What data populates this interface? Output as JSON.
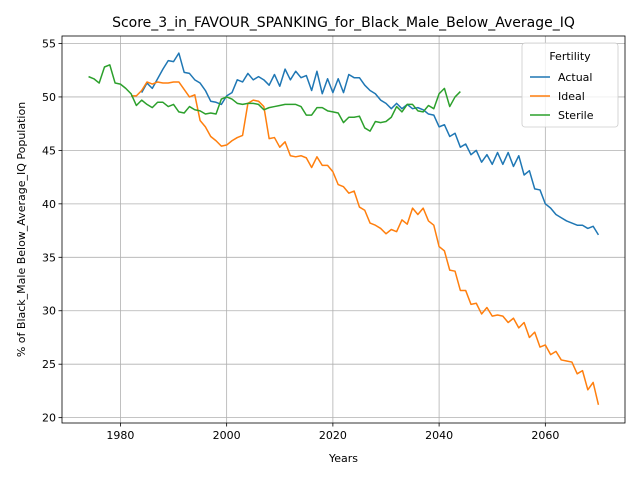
{
  "chart_data": {
    "type": "line",
    "title": "Score_3_in_FAVOUR_SPANKING_for_Black_Male_Below_Average_IQ",
    "xlabel": "Years",
    "ylabel": "% of Black_Male Below_Average_IQ Population",
    "xlim": [
      1969,
      2075
    ],
    "ylim": [
      19.5,
      55.7
    ],
    "xticks": [
      1980,
      2000,
      2020,
      2040,
      2060
    ],
    "yticks": [
      20,
      25,
      30,
      35,
      40,
      45,
      50,
      55
    ],
    "grid": true,
    "legend": {
      "title": "Fertility",
      "placement": "top-right"
    },
    "series": [
      {
        "name": "Actual",
        "color": "#1f77b4",
        "x": [
          1984,
          1985,
          1986,
          1987,
          1988,
          1989,
          1990,
          1991,
          1992,
          1993,
          1994,
          1995,
          1996,
          1997,
          1998,
          1999,
          2000,
          2001,
          2002,
          2003,
          2004,
          2005,
          2006,
          2007,
          2008,
          2009,
          2010,
          2011,
          2012,
          2013,
          2014,
          2015,
          2016,
          2017,
          2018,
          2019,
          2020,
          2021,
          2022,
          2023,
          2024,
          2025,
          2026,
          2027,
          2028,
          2029,
          2030,
          2031,
          2032,
          2033,
          2034,
          2035,
          2036,
          2037,
          2038,
          2039,
          2040,
          2041,
          2042,
          2043,
          2044,
          2045,
          2046,
          2047,
          2048,
          2049,
          2050,
          2051,
          2052,
          2053,
          2054,
          2055,
          2056,
          2057,
          2058,
          2059,
          2060,
          2061,
          2062,
          2063,
          2064,
          2065,
          2066,
          2067,
          2068,
          2069,
          2070
        ],
        "y": [
          50.4,
          51.3,
          50.8,
          51.7,
          52.6,
          53.4,
          53.3,
          54.1,
          52.3,
          52.2,
          51.6,
          51.3,
          50.6,
          49.6,
          49.5,
          49.3,
          50.1,
          50.4,
          51.6,
          51.4,
          52.2,
          51.6,
          51.9,
          51.6,
          51.1,
          52.1,
          51.0,
          52.6,
          51.6,
          52.4,
          51.8,
          52.0,
          50.6,
          52.4,
          50.3,
          51.7,
          50.4,
          51.7,
          50.4,
          52.1,
          51.8,
          51.8,
          51.1,
          50.6,
          50.3,
          49.7,
          49.4,
          48.9,
          49.4,
          48.9,
          49.3,
          48.9,
          49.0,
          48.8,
          48.4,
          48.3,
          47.2,
          47.4,
          46.3,
          46.6,
          45.3,
          45.6,
          44.6,
          45.0,
          43.9,
          44.6,
          43.7,
          44.8,
          43.7,
          44.8,
          43.5,
          44.5,
          42.7,
          43.1,
          41.4,
          41.3,
          40.0,
          39.6,
          39.0,
          38.7,
          38.4,
          38.2,
          38.0,
          38.0,
          37.7,
          37.9,
          37.1
        ]
      },
      {
        "name": "Ideal",
        "color": "#ff7f0e",
        "x": [
          1982,
          1983,
          1984,
          1985,
          1986,
          1987,
          1988,
          1989,
          1990,
          1991,
          1992,
          1993,
          1994,
          1995,
          1996,
          1997,
          1998,
          1999,
          2000,
          2001,
          2002,
          2003,
          2004,
          2005,
          2006,
          2007,
          2008,
          2009,
          2010,
          2011,
          2012,
          2013,
          2014,
          2015,
          2016,
          2017,
          2018,
          2019,
          2020,
          2021,
          2022,
          2023,
          2024,
          2025,
          2026,
          2027,
          2028,
          2029,
          2030,
          2031,
          2032,
          2033,
          2034,
          2035,
          2036,
          2037,
          2038,
          2039,
          2040,
          2041,
          2042,
          2043,
          2044,
          2045,
          2046,
          2047,
          2048,
          2049,
          2050,
          2051,
          2052,
          2053,
          2054,
          2055,
          2056,
          2057,
          2058,
          2059,
          2060,
          2061,
          2062,
          2063,
          2064,
          2065,
          2066,
          2067,
          2068,
          2069,
          2070
        ],
        "y": [
          50.1,
          50.1,
          50.6,
          51.4,
          51.2,
          51.4,
          51.3,
          51.3,
          51.4,
          51.4,
          50.7,
          50.0,
          50.2,
          47.8,
          47.2,
          46.3,
          45.9,
          45.4,
          45.5,
          45.9,
          46.2,
          46.4,
          49.4,
          49.7,
          49.6,
          49.1,
          46.1,
          46.2,
          45.3,
          45.8,
          44.5,
          44.4,
          44.5,
          44.3,
          43.4,
          44.4,
          43.6,
          43.6,
          43.0,
          41.8,
          41.6,
          41.0,
          41.2,
          39.7,
          39.4,
          38.2,
          38.0,
          37.7,
          37.2,
          37.6,
          37.4,
          38.5,
          38.1,
          39.6,
          39.0,
          39.6,
          38.4,
          38.0,
          36.0,
          35.6,
          33.8,
          33.7,
          31.9,
          31.9,
          30.6,
          30.7,
          29.7,
          30.3,
          29.5,
          29.6,
          29.5,
          28.9,
          29.3,
          28.4,
          28.9,
          27.5,
          28.0,
          26.6,
          26.8,
          25.9,
          26.2,
          25.4,
          25.3,
          25.2,
          24.1,
          24.4,
          22.6,
          23.3,
          21.2
        ]
      },
      {
        "name": "Sterile",
        "color": "#2ca02c",
        "x": [
          1974,
          1975,
          1976,
          1977,
          1978,
          1979,
          1980,
          1981,
          1982,
          1983,
          1984,
          1985,
          1986,
          1987,
          1988,
          1989,
          1990,
          1991,
          1992,
          1993,
          1994,
          1995,
          1996,
          1997,
          1998,
          1999,
          2000,
          2001,
          2002,
          2003,
          2004,
          2005,
          2006,
          2007,
          2008,
          2009,
          2010,
          2011,
          2012,
          2013,
          2014,
          2015,
          2016,
          2017,
          2018,
          2019,
          2020,
          2021,
          2022,
          2023,
          2024,
          2025,
          2026,
          2027,
          2028,
          2029,
          2030,
          2031,
          2032,
          2033,
          2034,
          2035,
          2036,
          2037,
          2038,
          2039,
          2040,
          2041,
          2042,
          2043,
          2044
        ],
        "y": [
          51.9,
          51.7,
          51.3,
          52.8,
          53.0,
          51.3,
          51.2,
          50.8,
          50.3,
          49.2,
          49.7,
          49.3,
          49.0,
          49.5,
          49.5,
          49.1,
          49.3,
          48.6,
          48.5,
          49.1,
          48.8,
          48.7,
          48.4,
          48.5,
          48.4,
          49.8,
          50.0,
          49.8,
          49.4,
          49.3,
          49.4,
          49.4,
          49.3,
          48.8,
          49.0,
          49.1,
          49.2,
          49.3,
          49.3,
          49.3,
          49.1,
          48.3,
          48.3,
          49.0,
          49.0,
          48.7,
          48.6,
          48.5,
          47.6,
          48.1,
          48.1,
          48.2,
          47.1,
          46.8,
          47.7,
          47.6,
          47.7,
          48.1,
          49.1,
          48.6,
          49.3,
          49.3,
          48.7,
          48.6,
          49.2,
          48.9,
          50.3,
          50.8,
          49.1,
          50.0,
          50.5
        ]
      }
    ]
  }
}
